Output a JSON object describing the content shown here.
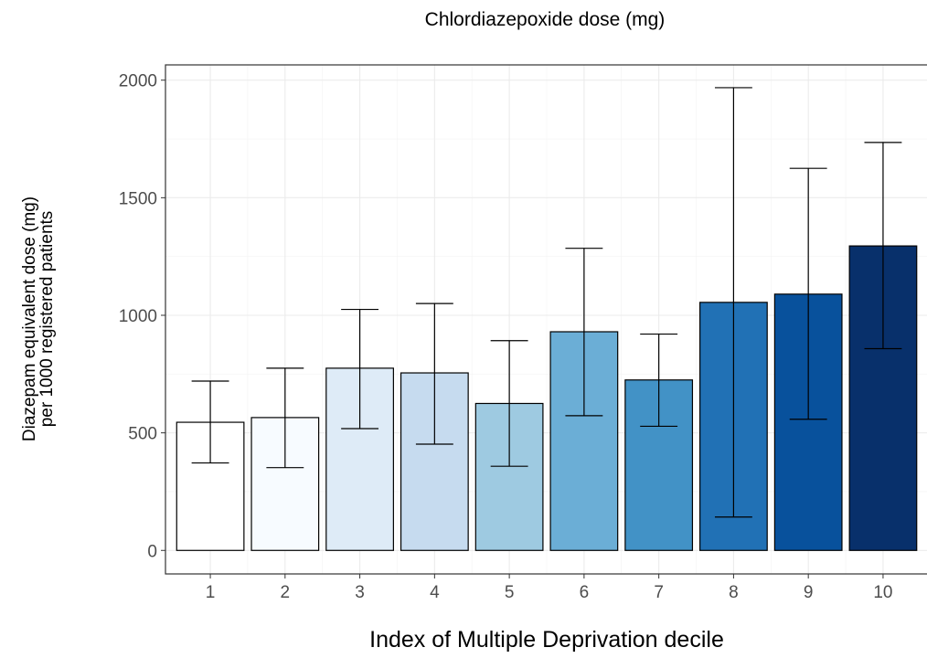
{
  "chart_data": {
    "type": "bar",
    "title": "Chlordiazepoxide dose (mg)",
    "xlabel": "Index of Multiple Deprivation decile",
    "ylabel_lines": [
      "Diazepam equivalent dose (mg)",
      "per 1000 registered patients"
    ],
    "categories": [
      "1",
      "2",
      "3",
      "4",
      "5",
      "6",
      "7",
      "8",
      "9",
      "10"
    ],
    "values": [
      545,
      565,
      775,
      755,
      625,
      930,
      725,
      1055,
      1090,
      1295
    ],
    "error_low": [
      372,
      352,
      518,
      452,
      358,
      573,
      528,
      142,
      558,
      858
    ],
    "error_high": [
      720,
      775,
      1025,
      1050,
      892,
      1285,
      920,
      1968,
      1625,
      1735
    ],
    "fill_colors": [
      "#ffffff",
      "#f7fbff",
      "#deebf7",
      "#c6dbef",
      "#9ecae1",
      "#6baed6",
      "#4292c6",
      "#2171b5",
      "#08519c",
      "#08306b"
    ],
    "ylim": [
      -100,
      2065
    ],
    "yticks": [
      0,
      500,
      1000,
      1500,
      2000
    ],
    "grid": true,
    "legend": "none"
  }
}
